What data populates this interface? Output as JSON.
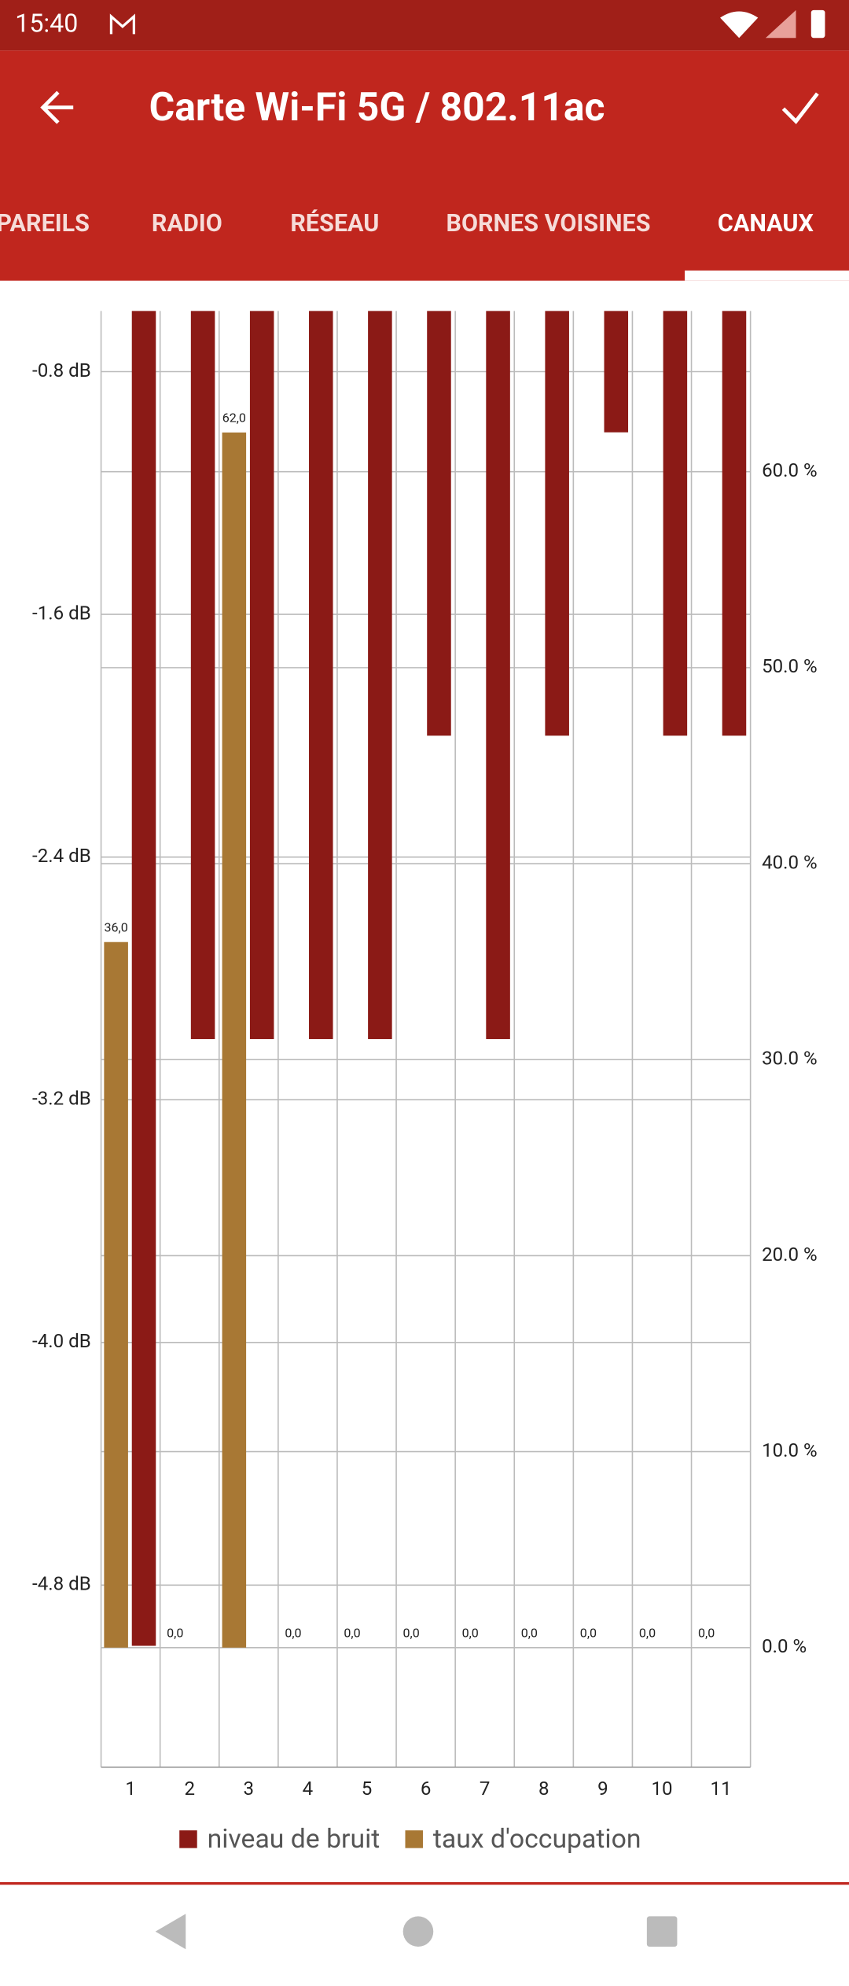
{
  "status_bar": {
    "time": "15:40"
  },
  "app_bar": {
    "title": "Carte Wi-Fi 5G / 802.11ac"
  },
  "tabs": [
    "PAREILS",
    "RADIO",
    "RÉSEAU",
    "BORNES VOISINES",
    "CANAUX"
  ],
  "chart_data": {
    "type": "bar",
    "categories": [
      "1",
      "2",
      "3",
      "4",
      "5",
      "6",
      "7",
      "8",
      "9",
      "10",
      "11"
    ],
    "series": [
      {
        "name": "niveau de bruit",
        "color": "#8b1a16",
        "axis": "y",
        "values": [
          -5.0,
          -3.0,
          -3.0,
          -3.0,
          -3.0,
          -2.0,
          -3.0,
          -2.0,
          -1.0,
          -2.0,
          -2.0
        ]
      },
      {
        "name": "taux d'occupation",
        "color": "#a87834",
        "axis": "y2",
        "values": [
          36,
          0,
          62,
          0,
          0,
          0,
          0,
          0,
          0,
          0,
          0
        ],
        "value_labels": [
          "36,0",
          "0,0",
          "62,0",
          "0,0",
          "0,0",
          "0,0",
          "0,0",
          "0,0",
          "0,0",
          "0,0",
          "0,0"
        ]
      }
    ],
    "ylim": [
      -5.4,
      -0.6
    ],
    "yticks": [
      {
        "value": -0.8,
        "label": "-0.8 dB"
      },
      {
        "value": -1.6,
        "label": "-1.6 dB"
      },
      {
        "value": -2.4,
        "label": "-2.4 dB"
      },
      {
        "value": -3.2,
        "label": "-3.2 dB"
      },
      {
        "value": -4.0,
        "label": "-4.0 dB"
      },
      {
        "value": -4.8,
        "label": "-4.8 dB"
      }
    ],
    "y2lim": [
      -6.1,
      68.2
    ],
    "y2ticks": [
      {
        "value": 0,
        "label": "0.0 %"
      },
      {
        "value": 10,
        "label": "10.0 %"
      },
      {
        "value": 20,
        "label": "20.0 %"
      },
      {
        "value": 30,
        "label": "30.0 %"
      },
      {
        "value": 40,
        "label": "40.0 %"
      },
      {
        "value": 50,
        "label": "50.0 %"
      },
      {
        "value": 60,
        "label": "60.0 %"
      }
    ],
    "grid": true,
    "legend": "bottom"
  }
}
